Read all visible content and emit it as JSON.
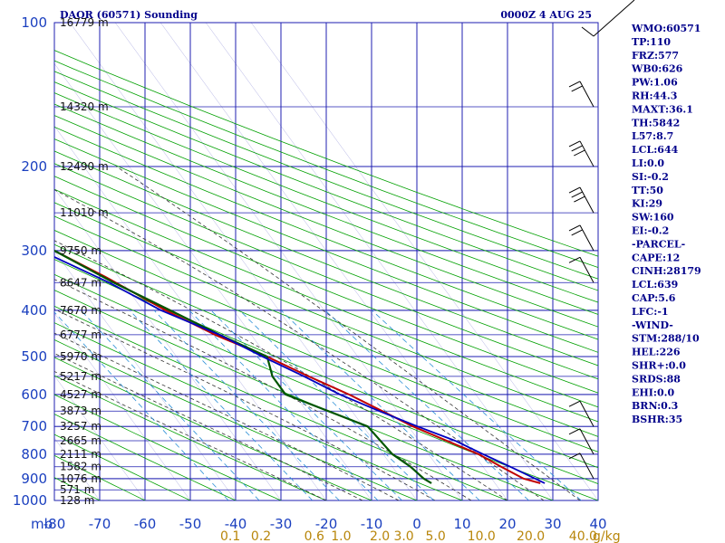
{
  "header": {
    "title": "DAOR (60571) Sounding",
    "datetime": "0000Z  4 AUG 25"
  },
  "colors": {
    "grid": "#1f1fb0",
    "dry_adiabat": "#00a000",
    "moist_adiabat": "#333333",
    "mixing_ratio": "#2a8fd6",
    "temperature": "#c00000",
    "dewpoint": "#005500",
    "parcel": "#0000c0"
  },
  "indices": [
    "WMO:60571",
    "TP:110",
    "FRZ:577",
    "WB0:626",
    "PW:1.06",
    "RH:44.3",
    "MAXT:36.1",
    "TH:5842",
    "L57:8.7",
    "LCL:644",
    "LI:0.0",
    "SI:-0.2",
    "TT:50",
    "KI:29",
    "SW:160",
    "EI:-0.2",
    "-PARCEL-",
    "CAPE:12",
    "CINH:28179",
    "LCL:639",
    "CAP:5.6",
    "LFC:-1",
    "-WIND-",
    "STM:288/10",
    "HEL:226",
    "SHR+:0.0",
    "SRDS:88",
    "EHI:0.0",
    "BRN:0.3",
    "BSHR:35"
  ],
  "mixing_ratio_labels": [
    "0.1",
    "0.2",
    "0.6",
    "1.0",
    "2.0",
    "3.0",
    "5.0",
    "10.0",
    "20.0",
    "40.0"
  ],
  "mixing_ratio_unit": "g/kg",
  "corner_label": "mb",
  "chart_data": {
    "type": "skew-t",
    "y_axis": {
      "unit": "mb",
      "scale": "log",
      "range": [
        1000,
        100
      ],
      "ticks": [
        100,
        200,
        300,
        400,
        500,
        600,
        700,
        800,
        900,
        1000
      ]
    },
    "x_axis": {
      "unit": "C",
      "range": [
        -80,
        40
      ],
      "ticks": [
        -80,
        -70,
        -60,
        -50,
        -40,
        -30,
        -20,
        -10,
        0,
        10,
        20,
        30,
        40
      ]
    },
    "height_labels": [
      {
        "p": 100,
        "text": "16779 m"
      },
      {
        "p": 150,
        "text": "14320 m"
      },
      {
        "p": 200,
        "text": "12490 m"
      },
      {
        "p": 250,
        "text": "11010 m"
      },
      {
        "p": 300,
        "text": "9750 m"
      },
      {
        "p": 350,
        "text": "8647 m"
      },
      {
        "p": 400,
        "text": "7670 m"
      },
      {
        "p": 450,
        "text": "6777 m"
      },
      {
        "p": 500,
        "text": "5970 m"
      },
      {
        "p": 550,
        "text": "5217 m"
      },
      {
        "p": 600,
        "text": "4527 m"
      },
      {
        "p": 650,
        "text": "3873 m"
      },
      {
        "p": 700,
        "text": "3257 m"
      },
      {
        "p": 750,
        "text": "2665 m"
      },
      {
        "p": 800,
        "text": "2111 m"
      },
      {
        "p": 850,
        "text": "1582 m"
      },
      {
        "p": 900,
        "text": "1076 m"
      },
      {
        "p": 950,
        "text": "571 m"
      },
      {
        "p": 1000,
        "text": "128 m"
      }
    ],
    "series": [
      {
        "key": "temperature",
        "points": [
          [
            100,
            -69
          ],
          [
            120,
            -70
          ],
          [
            150,
            -64
          ],
          [
            200,
            -56
          ],
          [
            230,
            -51
          ],
          [
            245,
            -50
          ],
          [
            250,
            -49
          ],
          [
            280,
            -45
          ],
          [
            300,
            -40
          ],
          [
            340,
            -33
          ],
          [
            400,
            -25
          ],
          [
            450,
            -18
          ],
          [
            500,
            -10
          ],
          [
            550,
            -4
          ],
          [
            600,
            2
          ],
          [
            700,
            11
          ],
          [
            800,
            21
          ],
          [
            850,
            24
          ],
          [
            900,
            27
          ],
          [
            920,
            30
          ]
        ]
      },
      {
        "key": "dewpoint",
        "points": [
          [
            150,
            -87
          ],
          [
            220,
            -73
          ],
          [
            235,
            -72
          ],
          [
            240,
            -68
          ],
          [
            250,
            -55
          ],
          [
            253,
            -48
          ],
          [
            300,
            -40
          ],
          [
            350,
            -32
          ],
          [
            400,
            -24
          ],
          [
            450,
            -17
          ],
          [
            500,
            -10
          ],
          [
            550,
            -12
          ],
          [
            590,
            -12
          ],
          [
            600,
            -12
          ],
          [
            700,
            1
          ],
          [
            800,
            2
          ],
          [
            850,
            4
          ],
          [
            900,
            5
          ],
          [
            920,
            6
          ]
        ]
      },
      {
        "key": "parcel",
        "points": [
          [
            150,
            -89
          ],
          [
            200,
            -68
          ],
          [
            250,
            -54
          ],
          [
            300,
            -43
          ],
          [
            350,
            -33
          ],
          [
            400,
            -26
          ],
          [
            450,
            -17
          ],
          [
            500,
            -11
          ],
          [
            550,
            -5
          ],
          [
            600,
            0
          ],
          [
            650,
            6
          ],
          [
            700,
            12
          ],
          [
            750,
            18
          ],
          [
            800,
            22
          ],
          [
            850,
            26
          ],
          [
            920,
            31
          ]
        ]
      }
    ],
    "wind_barbs": [
      {
        "p": 150,
        "barbs": 2
      },
      {
        "p": 200,
        "barbs": 3
      },
      {
        "p": 250,
        "barbs": 3
      },
      {
        "p": 300,
        "barbs": 2
      },
      {
        "p": 350,
        "barbs": 1
      },
      {
        "p": 700,
        "barbs": 1
      },
      {
        "p": 800,
        "barbs": 1
      },
      {
        "p": 900,
        "barbs": 1
      }
    ],
    "grid": true
  }
}
